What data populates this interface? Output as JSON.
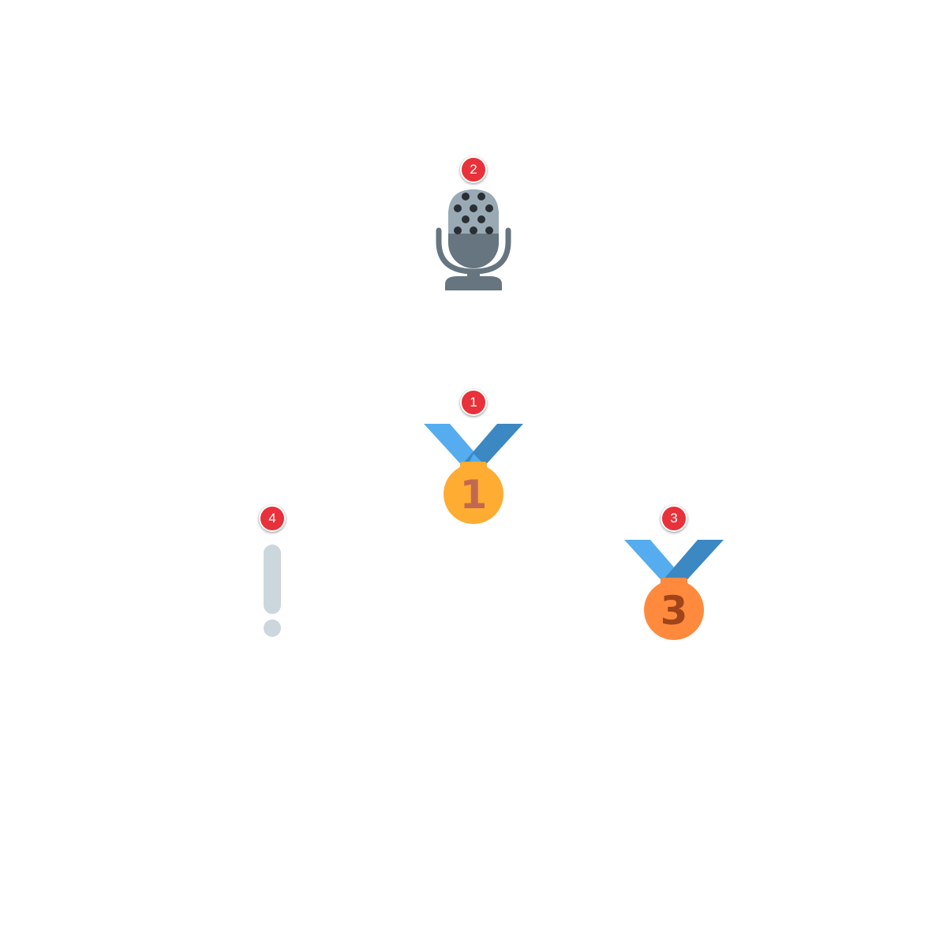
{
  "markers": [
    {
      "label": "2",
      "icon": "microphone-icon"
    },
    {
      "label": "1",
      "icon": "first-place-medal-icon",
      "medal_number": "1"
    },
    {
      "label": "3",
      "icon": "third-place-medal-icon",
      "medal_number": "3"
    },
    {
      "label": "4",
      "icon": "exclamation-icon"
    }
  ],
  "colors": {
    "badge": "#e8313a",
    "ribbon_light": "#55acee",
    "ribbon_dark": "#3b88c3",
    "gold": "#ffac33",
    "gold_text": "#c1694f",
    "bronze": "#ff8a3d",
    "bronze_text": "#a0441a",
    "mic_gray": "#66757f",
    "mic_dark": "#292f33",
    "exclamation": "#ccd6dd"
  }
}
